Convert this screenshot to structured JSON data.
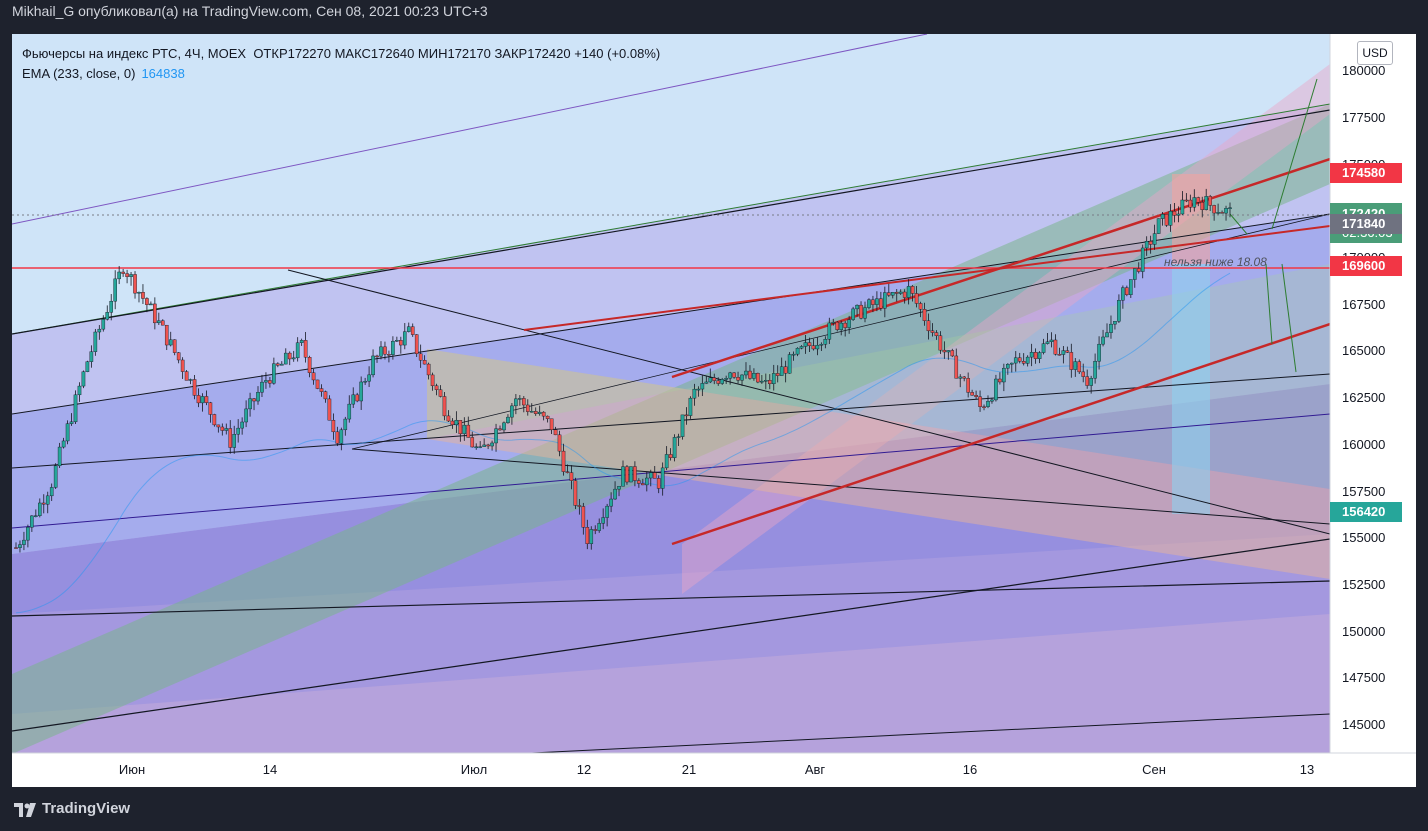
{
  "header": {
    "published_by": "Mikhail_G опубликовал(а) на TradingView.com, Сен 08, 2021 00:23 UTC+3"
  },
  "legend": {
    "instrument": "Фьючерсы на индекс РТС, 4Ч, MOEX",
    "ohlc": "ОТКР172270  МАКС172640  МИН172170  ЗАКР172420  +140 (+0.08%)",
    "ema_label": "EMA (233, close, 0)",
    "ema_value": "164838"
  },
  "currency": "USD",
  "annotation": "нельзя ниже 18.08",
  "footer": {
    "brand": "TradingView"
  },
  "colors": {
    "up": "#26a69a",
    "down": "#ef5350",
    "ema": "#2196f3",
    "badge_red": "#f23645",
    "badge_green": "#3d9f6e",
    "badge_gray": "#6f7280"
  },
  "price_badges": [
    {
      "value": "174580",
      "color": "#f23645"
    },
    {
      "value": "172420",
      "sub": "02:36:03",
      "color": "#4a9d78"
    },
    {
      "value": "171840",
      "color": "#6f7280"
    },
    {
      "value": "169600",
      "color": "#f23645"
    },
    {
      "value": "156420",
      "color": "#26a69a"
    }
  ],
  "chart_data": {
    "type": "candlestick",
    "title": "Фьючерсы на индекс РТС, 4Ч, MOEX",
    "ylim": [
      143500,
      182000
    ],
    "y_ticks": [
      "180000",
      "177500",
      "175000",
      "172500",
      "170000",
      "167500",
      "165000",
      "162500",
      "160000",
      "157500",
      "155000",
      "152500",
      "150000",
      "147500",
      "145000"
    ],
    "x_ticks": [
      "Июн",
      "14",
      "Июл",
      "12",
      "21",
      "Авг",
      "16",
      "Сен",
      "13"
    ],
    "last_close": 172420,
    "ema": {
      "name": "EMA (233, close, 0)",
      "value": 164838
    },
    "price_path": [
      [
        "Май 26",
        154500
      ],
      [
        "Июн 01",
        158000
      ],
      [
        "Июн 07",
        164500
      ],
      [
        "Июн 14",
        169600
      ],
      [
        "Июн 16",
        166500
      ],
      [
        "Июн 17",
        163000
      ],
      [
        "Июн 21",
        160200
      ],
      [
        "Июн 25",
        163500
      ],
      [
        "Июн 28",
        165300
      ],
      [
        "Июн 30",
        160500
      ],
      [
        "Июл 06",
        164500
      ],
      [
        "Июл 07",
        166000
      ],
      [
        "Июл 09",
        162000
      ],
      [
        "Июл 12",
        159500
      ],
      [
        "Июл 14",
        162500
      ],
      [
        "Июл 16",
        161000
      ],
      [
        "Июл 19",
        155000
      ],
      [
        "Июл 21",
        158500
      ],
      [
        "Июл 23",
        158000
      ],
      [
        "Июл 27",
        162800
      ],
      [
        "Июл 30",
        164000
      ],
      [
        "Авг 03",
        163200
      ],
      [
        "Авг 06",
        165000
      ],
      [
        "Авг 10",
        166500
      ],
      [
        "Авг 13",
        167500
      ],
      [
        "Авг 16",
        168300
      ],
      [
        "Авг 18",
        165000
      ],
      [
        "Авг 20",
        162000
      ],
      [
        "Авг 24",
        164500
      ],
      [
        "Авг 26",
        165500
      ],
      [
        "Авг 30",
        163500
      ],
      [
        "Сен 01",
        168000
      ],
      [
        "Сен 03",
        171800
      ],
      [
        "Сен 06",
        173200
      ],
      [
        "Сен 07",
        172420
      ]
    ]
  }
}
